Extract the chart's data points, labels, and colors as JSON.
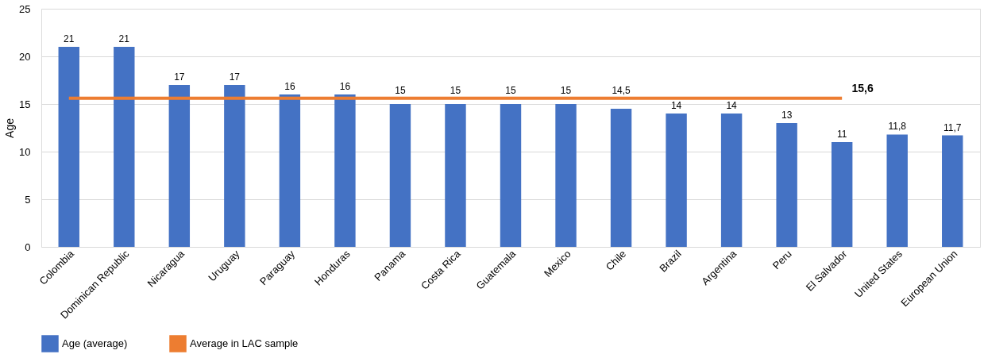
{
  "chart_data": {
    "type": "bar",
    "ylabel": "Age",
    "categories": [
      "Colombia",
      "Dominican Republic",
      "Nicaragua",
      "Uruguay",
      "Paraguay",
      "Honduras",
      "Panama",
      "Costa Rica",
      "Guatemala",
      "Mexico",
      "Chile",
      "Brazil",
      "Argentina",
      "Peru",
      "El Salvador",
      "United States",
      "European Union"
    ],
    "series": [
      {
        "name": "Age (average)",
        "color": "#4472c4",
        "values": [
          21,
          21,
          17,
          17,
          16,
          16,
          15,
          15,
          15,
          15,
          14.5,
          14,
          14,
          13,
          11,
          11.8,
          11.7
        ],
        "value_labels": [
          "21",
          "21",
          "17",
          "17",
          "16",
          "16",
          "15",
          "15",
          "15",
          "15",
          "14,5",
          "14",
          "14",
          "13",
          "11",
          "11,8",
          "11,7"
        ]
      },
      {
        "name": "Average in LAC sample",
        "type": "line",
        "color": "#ed7d31",
        "values": [
          15.6,
          15.6,
          15.6,
          15.6,
          15.6,
          15.6,
          15.6,
          15.6,
          15.6,
          15.6,
          15.6,
          15.6,
          15.6,
          15.6,
          15.6,
          null,
          null
        ],
        "value_labels": [
          null,
          null,
          null,
          null,
          null,
          null,
          null,
          null,
          null,
          null,
          null,
          null,
          null,
          null,
          "15,6",
          null,
          null
        ]
      }
    ],
    "ylim": [
      0,
      25
    ],
    "yticks": [
      0,
      5,
      10,
      15,
      20,
      25
    ],
    "grid": "y",
    "legend": "bottom"
  }
}
